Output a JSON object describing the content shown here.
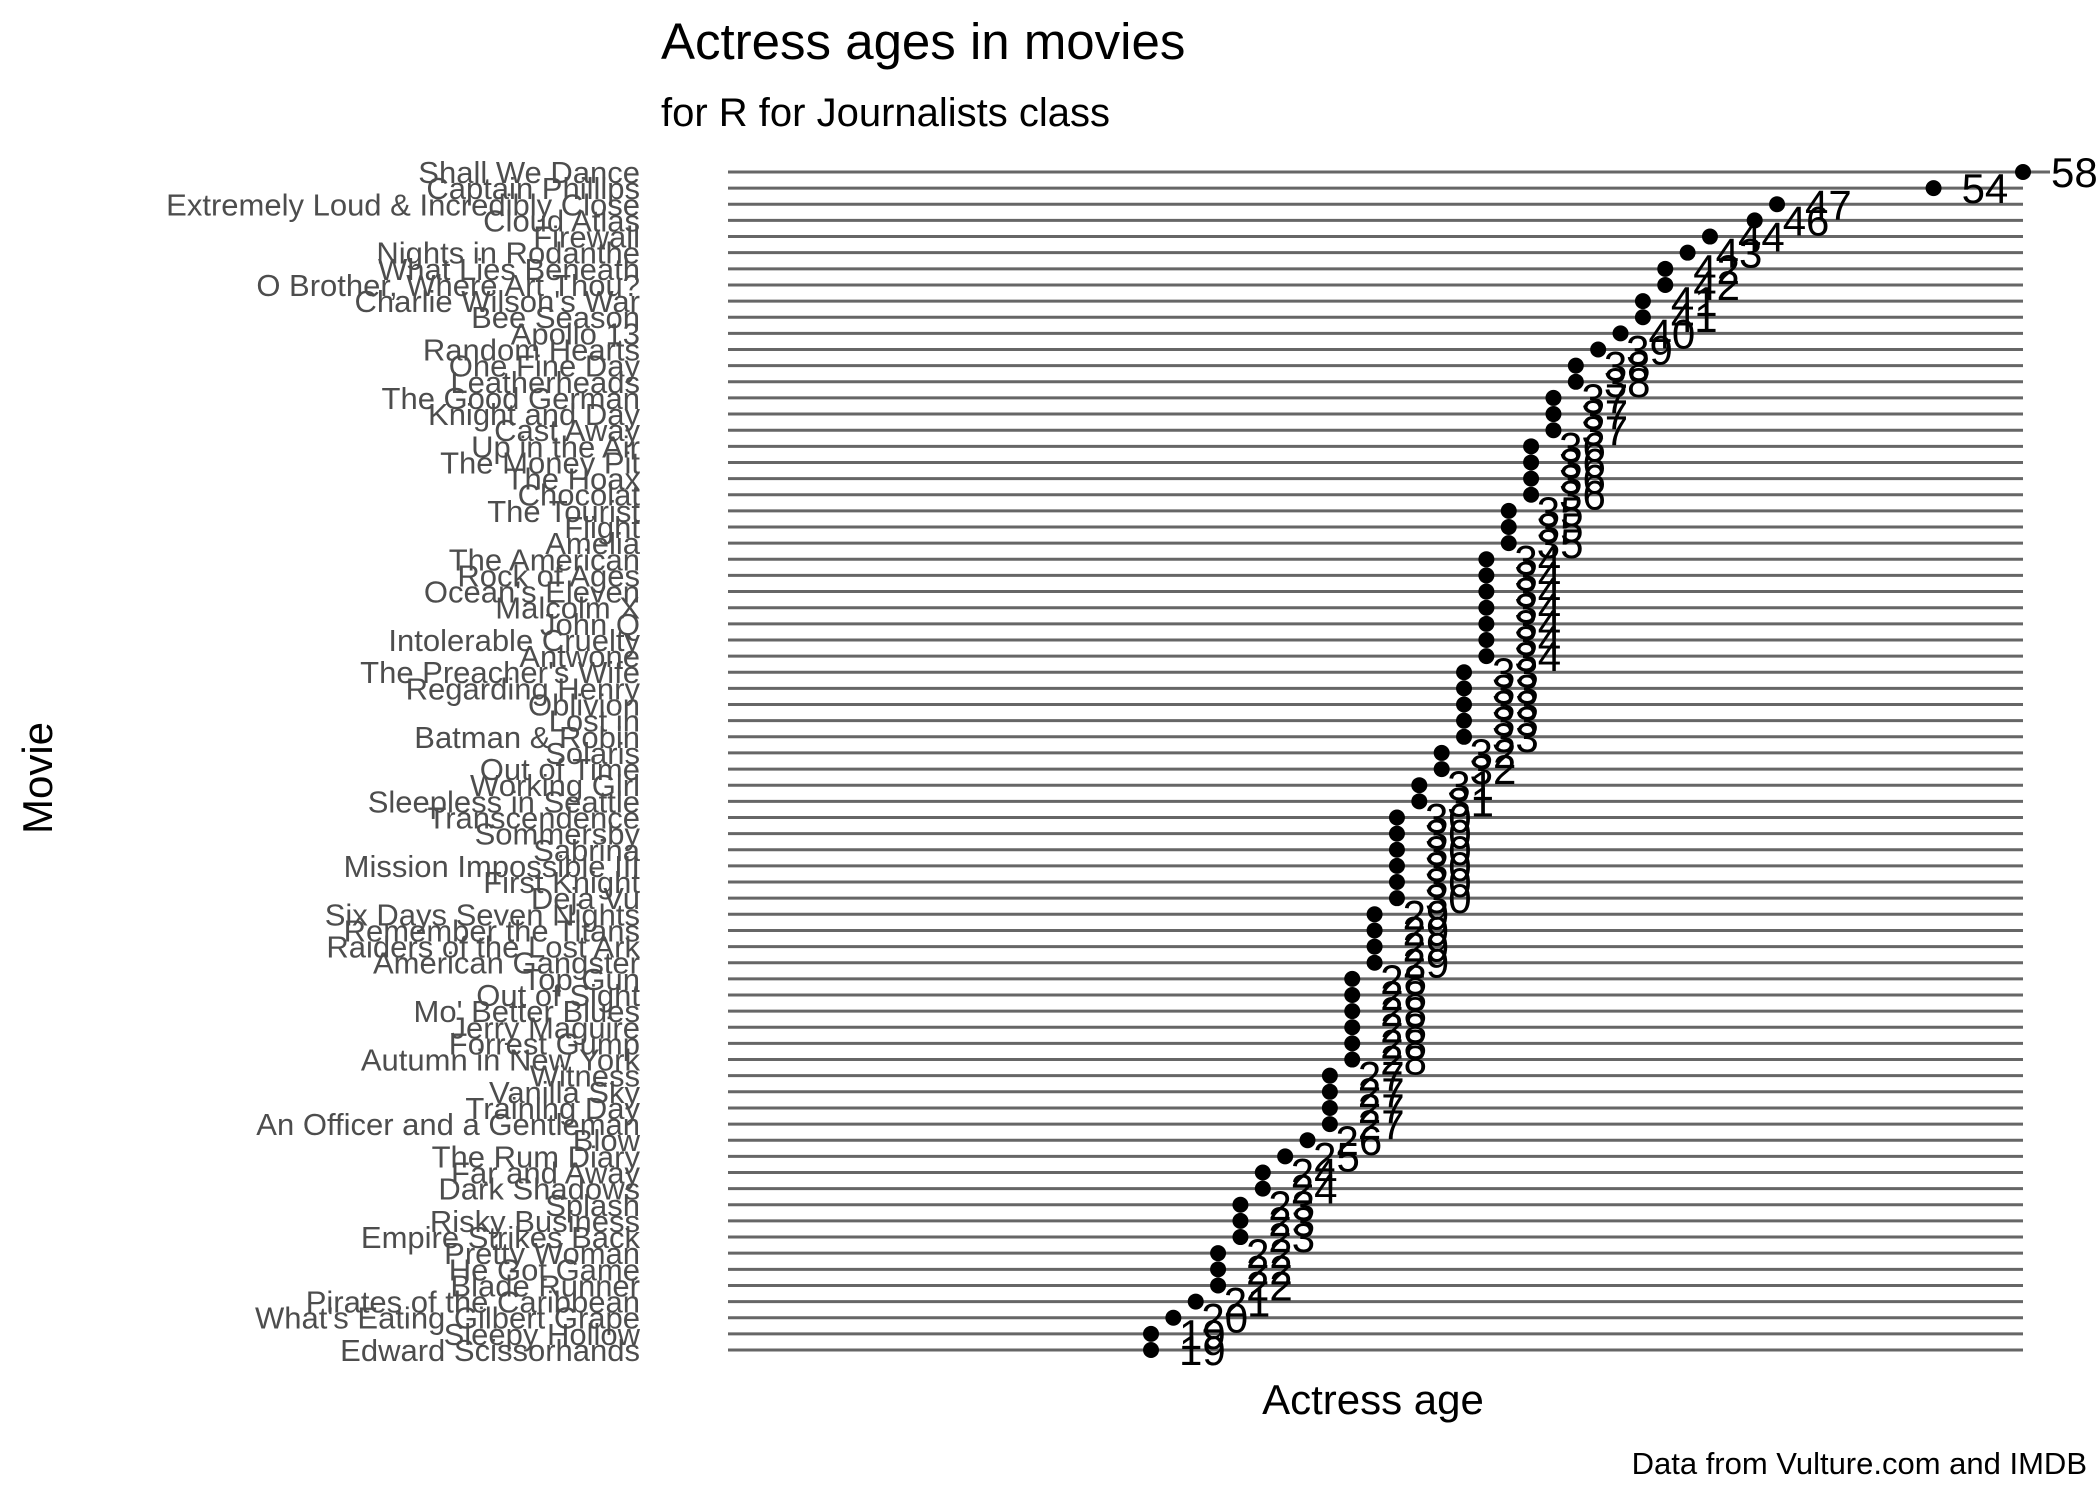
{
  "chart_data": {
    "type": "lollipop",
    "title": "Actress ages in movies",
    "subtitle": "for R for Journalists class",
    "xlabel": "Actress age",
    "ylabel": "Movie",
    "caption": "Data from Vulture.com and IMDB",
    "xlim": [
      0,
      58
    ],
    "grid": false,
    "legend": "none",
    "categories": [
      "Shall We Dance",
      "Captain Phillips",
      "Extremely Loud & Incredibly Close",
      "Cloud Atlas",
      "Firewall",
      "Nights in Rodanthe",
      "What Lies Beneath",
      "O Brother, Where Art Thou?",
      "Charlie Wilson's War",
      "Bee Season",
      "Apollo 13",
      "Random Hearts",
      "One Fine Day",
      "Leatherheads",
      "The Good German",
      "Knight and Day",
      "Cast Away",
      "Up in the Air",
      "The Money Pit",
      "The Hoax",
      "Chocolat",
      "The Tourist",
      "Flight",
      "Amelia",
      "The American",
      "Rock of Ages",
      "Ocean's Eleven",
      "Malcolm X",
      "John Q",
      "Intolerable Cruelty",
      "Antwone",
      "The Preacher's Wife",
      "Regarding Henry",
      "Oblivion",
      "Lost in",
      "Batman & Robin",
      "Solaris",
      "Out of Time",
      "Working Girl",
      "Sleepless in Seattle",
      "Transcendence",
      "Sommersby",
      "Sabrina",
      "Mission Impossible III",
      "First Knight",
      "Deja Vu",
      "Six Days Seven Nights",
      "Remember the Titans",
      "Raiders of the Lost Ark",
      "American Gangster",
      "Top Gun",
      "Out of Sight",
      "Mo' Better Blues",
      "Jerry Maguire",
      "Forrest Gump",
      "Autumn in New York",
      "Witness",
      "Vanilla Sky",
      "Training Day",
      "An Officer and a Gentleman",
      "Blow",
      "The Rum Diary",
      "Far and Away",
      "Dark Shadows",
      "Splash",
      "Risky Business",
      "Empire Strikes Back",
      "Pretty Woman",
      "He Got Game",
      "Blade Runner",
      "Pirates of the Caribbean",
      "What's Eating Gilbert Grape",
      "Sleepy Hollow",
      "Edward Scissorhands"
    ],
    "values": [
      58,
      54,
      47,
      46,
      44,
      43,
      42,
      42,
      41,
      41,
      40,
      39,
      38,
      38,
      37,
      37,
      37,
      36,
      36,
      36,
      36,
      35,
      35,
      35,
      34,
      34,
      34,
      34,
      34,
      34,
      34,
      33,
      33,
      33,
      33,
      33,
      32,
      32,
      31,
      31,
      30,
      30,
      30,
      30,
      30,
      30,
      29,
      29,
      29,
      29,
      28,
      28,
      28,
      28,
      28,
      28,
      27,
      27,
      27,
      27,
      26,
      25,
      24,
      24,
      23,
      23,
      23,
      22,
      22,
      22,
      21,
      20,
      19,
      19
    ]
  }
}
